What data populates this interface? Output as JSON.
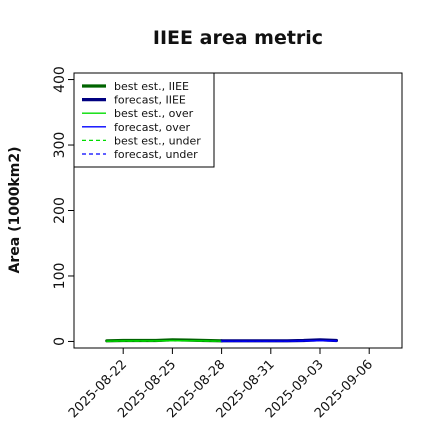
{
  "chart_data": {
    "type": "line",
    "title": "IIEE area metric",
    "ylabel": "Area (1000km2)",
    "xlabel": "",
    "ylim": [
      -10,
      410
    ],
    "yticks": [
      0,
      100,
      200,
      300,
      400
    ],
    "xlim": [
      "2025-08-19",
      "2025-09-08"
    ],
    "xticks": [
      "2025-08-22",
      "2025-08-25",
      "2025-08-28",
      "2025-08-31",
      "2025-09-03",
      "2025-09-06"
    ],
    "highlight_tick": "2025-08-28",
    "highlight_color": "#1a8a1a",
    "grid": false,
    "legend_position": "top-left",
    "series": [
      {
        "name": "best est., IIEE",
        "color": "#006400",
        "dash": "solid",
        "weight": "thick",
        "x": [
          "2025-08-21",
          "2025-08-22",
          "2025-08-24",
          "2025-08-25",
          "2025-08-26",
          "2025-08-27",
          "2025-08-28"
        ],
        "y": [
          1.0,
          1.5,
          1.5,
          2.5,
          2.0,
          1.5,
          1.0
        ]
      },
      {
        "name": "forecast, IIEE",
        "color": "#000080",
        "dash": "solid",
        "weight": "thick",
        "x": [
          "2025-08-28",
          "2025-08-29",
          "2025-09-01",
          "2025-09-02",
          "2025-09-03",
          "2025-09-04"
        ],
        "y": [
          1.0,
          1.0,
          1.0,
          1.5,
          2.5,
          1.5
        ]
      },
      {
        "name": "best est., over",
        "color": "#00dd00",
        "dash": "solid",
        "weight": "thin",
        "x": [
          "2025-08-21",
          "2025-08-22",
          "2025-08-24",
          "2025-08-25",
          "2025-08-26",
          "2025-08-27",
          "2025-08-28"
        ],
        "y": [
          0.5,
          1.0,
          1.0,
          1.5,
          1.0,
          1.0,
          0.5
        ]
      },
      {
        "name": "forecast, over",
        "color": "#0000ff",
        "dash": "solid",
        "weight": "thin",
        "x": [
          "2025-08-28",
          "2025-08-29",
          "2025-09-01",
          "2025-09-02",
          "2025-09-03",
          "2025-09-04"
        ],
        "y": [
          0.5,
          0.5,
          0.5,
          1.0,
          1.5,
          1.0
        ]
      },
      {
        "name": "best est., under",
        "color": "#00dd00",
        "dash": "dashed",
        "weight": "thin",
        "x": [
          "2025-08-21",
          "2025-08-22",
          "2025-08-24",
          "2025-08-25",
          "2025-08-26",
          "2025-08-27",
          "2025-08-28"
        ],
        "y": [
          0.5,
          0.5,
          0.5,
          1.0,
          1.0,
          0.5,
          0.5
        ]
      },
      {
        "name": "forecast, under",
        "color": "#0000ff",
        "dash": "dashed",
        "weight": "thin",
        "x": [
          "2025-08-28",
          "2025-08-29",
          "2025-09-01",
          "2025-09-02",
          "2025-09-03",
          "2025-09-04"
        ],
        "y": [
          0.5,
          0.5,
          0.5,
          0.5,
          1.0,
          0.5
        ]
      }
    ]
  }
}
